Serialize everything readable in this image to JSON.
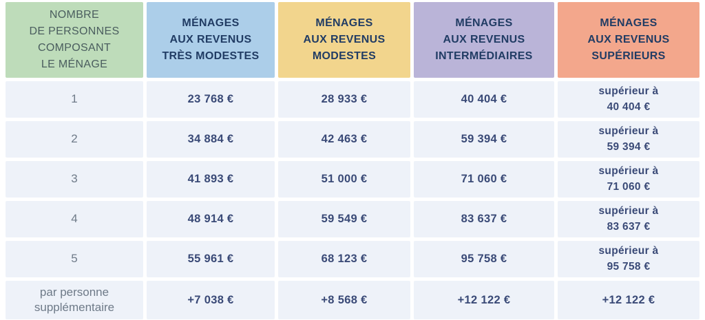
{
  "colors": {
    "persons-bg": "#bedcba",
    "tres-modestes-bg": "#accee9",
    "modestes-bg": "#f2d58d",
    "intermediaires-bg": "#bab4d8",
    "superieurs-bg": "#f3a78c",
    "persons-header-text": "#4a5d5e",
    "header-text": "#213c64",
    "cell-bg": "#eef2f9",
    "value-text": "#3a4a77",
    "row-label-text": "#6e7a88"
  },
  "table": {
    "columns": [
      {
        "label": "NOMBRE\nDE PERSONNES\nCOMPOSANT\nLE MÉNAGE"
      },
      {
        "label": "MÉNAGES\nAUX REVENUS\nTRÈS MODESTES"
      },
      {
        "label": "MÉNAGES\nAUX REVENUS\nMODESTES"
      },
      {
        "label": "MÉNAGES\nAUX REVENUS\nINTERMÉDIAIRES"
      },
      {
        "label": "MÉNAGES\nAUX REVENUS\nSUPÉRIEURS"
      }
    ],
    "rows": [
      {
        "cells": [
          "1",
          "23 768 €",
          "28 933 €",
          "40 404 €",
          "supérieur à\n40 404 €"
        ]
      },
      {
        "cells": [
          "2",
          "34 884 €",
          "42 463 €",
          "59 394 €",
          "supérieur à\n59 394 €"
        ]
      },
      {
        "cells": [
          "3",
          "41 893 €",
          "51 000 €",
          "71 060 €",
          "supérieur à\n71 060 €"
        ]
      },
      {
        "cells": [
          "4",
          "48 914 €",
          "59 549 €",
          "83 637 €",
          "supérieur à\n83 637 €"
        ]
      },
      {
        "cells": [
          "5",
          "55 961 €",
          "68 123 €",
          "95 758 €",
          "supérieur à\n95 758 €"
        ]
      },
      {
        "cells": [
          "par personne\nsupplémentaire",
          "+7 038 €",
          "+8 568 €",
          "+12 122 €",
          "+12 122 €"
        ]
      }
    ]
  },
  "chart_data": {
    "type": "table",
    "title": "",
    "columns": [
      "NOMBRE DE PERSONNES COMPOSANT LE MÉNAGE",
      "MÉNAGES AUX REVENUS TRÈS MODESTES",
      "MÉNAGES AUX REVENUS MODESTES",
      "MÉNAGES AUX REVENUS INTERMÉDIAIRES",
      "MÉNAGES AUX REVENUS SUPÉRIEURS"
    ],
    "rows": [
      [
        "1",
        "23 768 €",
        "28 933 €",
        "40 404 €",
        "supérieur à 40 404 €"
      ],
      [
        "2",
        "34 884 €",
        "42 463 €",
        "59 394 €",
        "supérieur à 59 394 €"
      ],
      [
        "3",
        "41 893 €",
        "51 000 €",
        "71 060 €",
        "supérieur à 71 060 €"
      ],
      [
        "4",
        "48 914 €",
        "59 549 €",
        "83 637 €",
        "supérieur à 83 637 €"
      ],
      [
        "5",
        "55 961 €",
        "68 123 €",
        "95 758 €",
        "supérieur à 95 758 €"
      ],
      [
        "par personne supplémentaire",
        "+7 038 €",
        "+8 568 €",
        "+12 122 €",
        "+12 122 €"
      ]
    ]
  }
}
